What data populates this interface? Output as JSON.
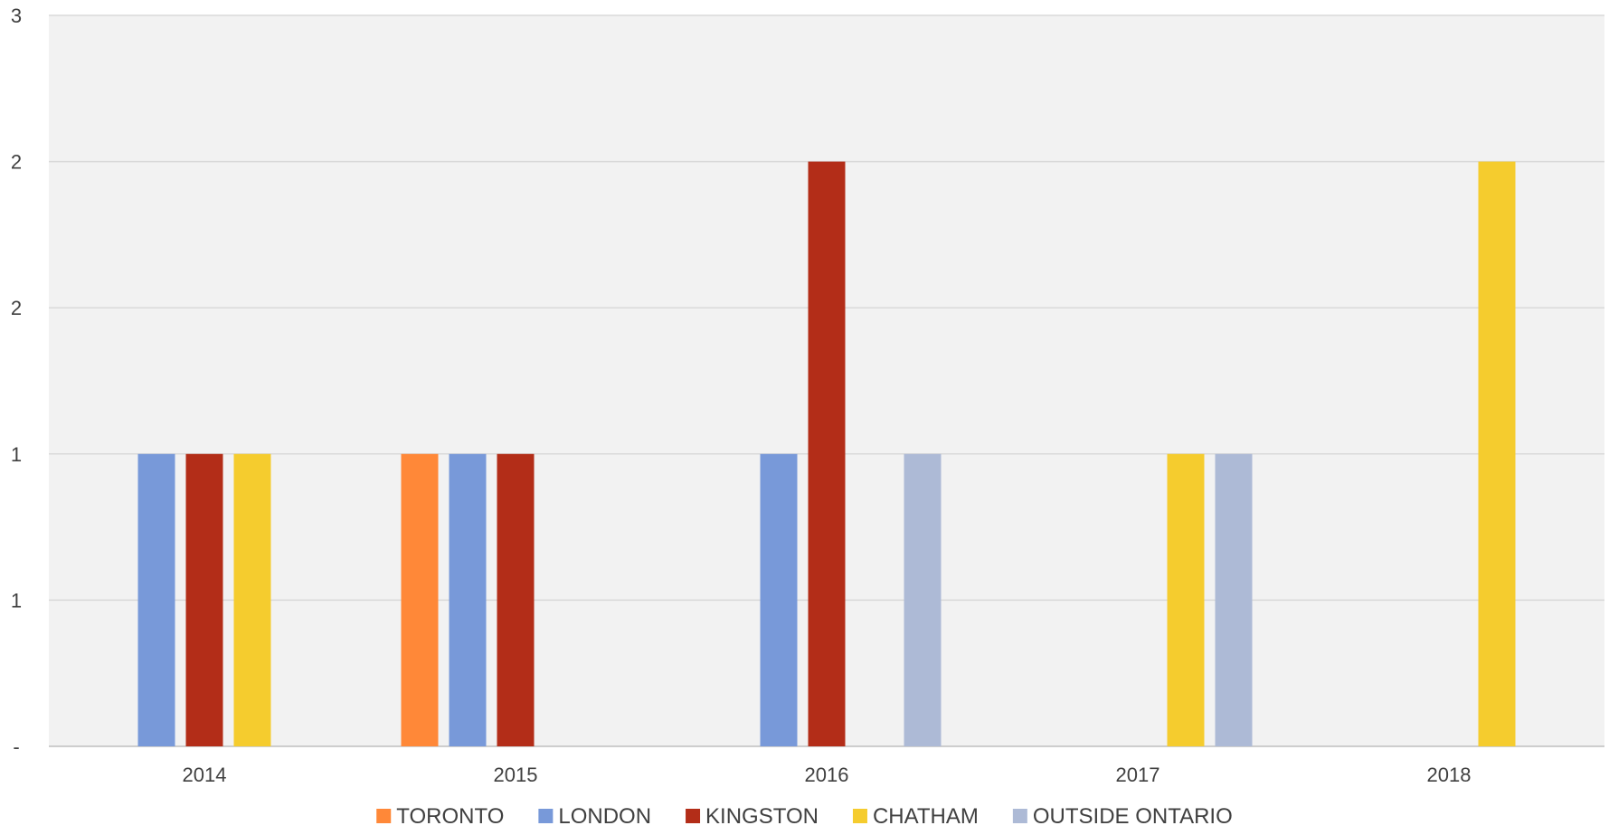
{
  "chart_data": {
    "type": "bar",
    "categories": [
      "2014",
      "2015",
      "2016",
      "2017",
      "2018"
    ],
    "series": [
      {
        "name": "TORONTO",
        "color": "#FF8838",
        "values": [
          0,
          1,
          0,
          0,
          0
        ]
      },
      {
        "name": "LONDON",
        "color": "#7899D9",
        "values": [
          1,
          1,
          1,
          0,
          0
        ]
      },
      {
        "name": "KINGSTON",
        "color": "#B32D18",
        "values": [
          1,
          1,
          2,
          0,
          0
        ]
      },
      {
        "name": "CHATHAM",
        "color": "#F5CC2E",
        "values": [
          1,
          0,
          0,
          1,
          2
        ]
      },
      {
        "name": "OUTSIDE ONTARIO",
        "color": "#ADBAD6",
        "values": [
          0,
          0,
          1,
          1,
          0
        ]
      }
    ],
    "ylim": [
      0,
      2.5
    ],
    "yticks": [
      {
        "value": 0,
        "label": "-"
      },
      {
        "value": 0.5,
        "label": "1"
      },
      {
        "value": 1,
        "label": "1"
      },
      {
        "value": 1.5,
        "label": "2"
      },
      {
        "value": 2,
        "label": "2"
      },
      {
        "value": 2.5,
        "label": "3"
      }
    ],
    "grid": true,
    "legend_position": "bottom",
    "plot_background": "#F2F2F2",
    "gridline_color": "#D9D9D9"
  }
}
